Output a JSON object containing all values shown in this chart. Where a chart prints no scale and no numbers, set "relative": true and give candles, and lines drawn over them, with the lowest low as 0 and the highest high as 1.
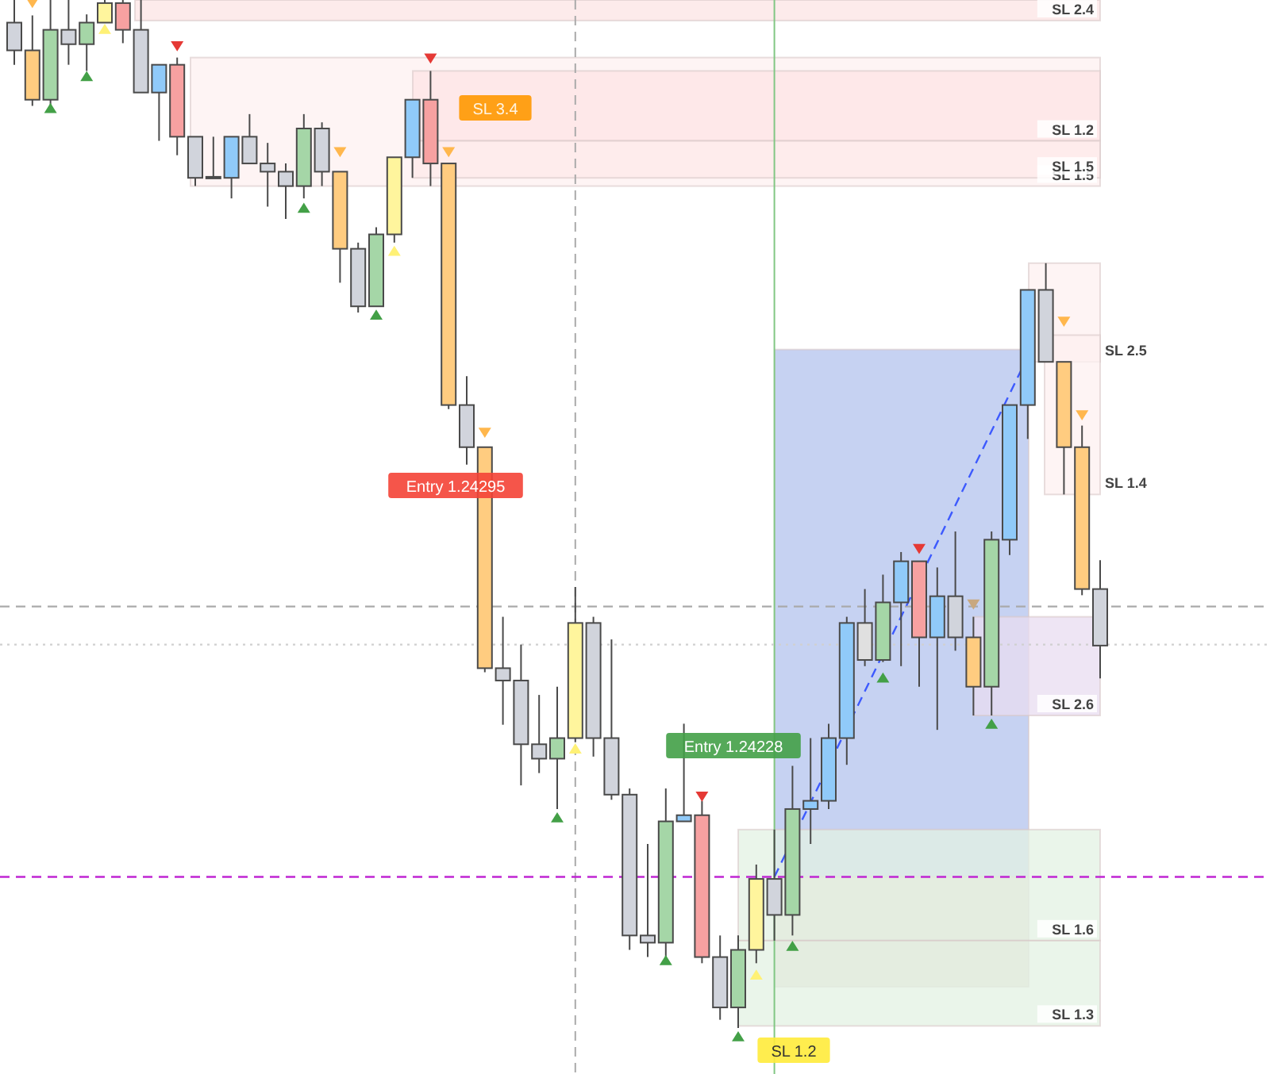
{
  "chart_data": {
    "type": "candlestick",
    "relative": true,
    "categories": [
      null,
      null,
      null,
      null,
      null,
      null,
      null,
      null,
      null,
      null,
      null,
      null,
      null,
      null,
      null,
      null,
      null,
      null,
      null,
      null,
      null,
      null,
      null,
      null,
      null,
      null,
      null,
      null,
      null,
      null,
      null,
      null,
      null,
      null,
      null,
      null,
      null,
      null,
      null,
      null,
      null,
      null,
      null,
      null,
      null,
      null,
      null,
      null,
      null,
      null,
      null,
      null,
      null,
      null,
      null,
      null,
      null,
      null,
      null,
      null,
      null
    ],
    "ohlc": [
      [
        0.978,
        1,
        0.937,
        0.951
      ],
      [
        0.951,
        0.985,
        0.897,
        0.903
      ],
      [
        0.903,
        1,
        0.897,
        0.971
      ],
      [
        0.971,
        1,
        0.937,
        0.957
      ],
      [
        0.957,
        0.986,
        0.931,
        0.978
      ],
      [
        0.978,
        1,
        0.978,
        0.997
      ],
      [
        0.997,
        1,
        0.958,
        0.971
      ],
      [
        0.971,
        1,
        0.91,
        0.91
      ],
      [
        0.91,
        0.937,
        0.863,
        0.937
      ],
      [
        0.937,
        0.944,
        0.849,
        0.867
      ],
      [
        0.867,
        0.867,
        0.819,
        0.827
      ],
      [
        0.828,
        0.867,
        0.827,
        0.827
      ],
      [
        0.827,
        0.867,
        0.807,
        0.867
      ],
      [
        0.867,
        0.889,
        0.841,
        0.841
      ],
      [
        0.841,
        0.861,
        0.799,
        0.833
      ],
      [
        0.833,
        0.841,
        0.787,
        0.819
      ],
      [
        0.819,
        0.889,
        0.807,
        0.875
      ],
      [
        0.875,
        0.881,
        0.819,
        0.833
      ],
      [
        0.833,
        0.833,
        0.725,
        0.758
      ],
      [
        0.758,
        0.764,
        0.696,
        0.702
      ],
      [
        0.702,
        0.779,
        0.702,
        0.772
      ],
      [
        0.772,
        0.847,
        0.764,
        0.847
      ],
      [
        0.847,
        0.903,
        0.827,
        0.903
      ],
      [
        0.903,
        0.931,
        0.819,
        0.841
      ],
      [
        0.841,
        0.841,
        0.602,
        0.606
      ],
      [
        0.606,
        0.634,
        0.548,
        0.565
      ],
      [
        0.565,
        0.565,
        0.346,
        0.35
      ],
      [
        0.35,
        0.4,
        0.295,
        0.338
      ],
      [
        0.338,
        0.373,
        0.236,
        0.276
      ],
      [
        0.276,
        0.324,
        0.248,
        0.262
      ],
      [
        0.262,
        0.332,
        0.213,
        0.282
      ],
      [
        0.282,
        0.429,
        0.278,
        0.394
      ],
      [
        0.394,
        0.4,
        0.264,
        0.282
      ],
      [
        0.282,
        0.378,
        0.222,
        0.227
      ],
      [
        0.227,
        0.233,
        0.076,
        0.09
      ],
      [
        0.09,
        0.179,
        0.069,
        0.083
      ],
      [
        0.083,
        0.233,
        0.069,
        0.201
      ],
      [
        0.201,
        0.296,
        0.201,
        0.207
      ],
      [
        0.207,
        0.221,
        0.063,
        0.069
      ],
      [
        0.069,
        0.09,
        0.008,
        0.02
      ],
      [
        0.02,
        0.09,
        0,
        0.076
      ],
      [
        0.076,
        0.159,
        0.063,
        0.145
      ],
      [
        0.145,
        0.193,
        0.085,
        0.11
      ],
      [
        0.11,
        0.255,
        0.09,
        0.213
      ],
      [
        0.213,
        0.282,
        0.179,
        0.221
      ],
      [
        0.221,
        0.296,
        0.213,
        0.282
      ],
      [
        0.282,
        0.4,
        0.256,
        0.394
      ],
      [
        0.394,
        0.427,
        0.352,
        0.358
      ],
      [
        0.358,
        0.441,
        0.356,
        0.414
      ],
      [
        0.414,
        0.463,
        0.352,
        0.454
      ],
      [
        0.454,
        0.454,
        0.332,
        0.38
      ],
      [
        0.38,
        0.448,
        0.29,
        0.42
      ],
      [
        0.42,
        0.483,
        0.367,
        0.38
      ],
      [
        0.38,
        0.4,
        0.304,
        0.332
      ],
      [
        0.332,
        0.483,
        0.304,
        0.475
      ],
      [
        0.475,
        0.606,
        0.46,
        0.606
      ],
      [
        0.606,
        0.718,
        0.573,
        0.718
      ],
      [
        0.718,
        0.744,
        0.648,
        0.648
      ],
      [
        0.648,
        0.648,
        0.519,
        0.565
      ],
      [
        0.565,
        0.586,
        0.421,
        0.427
      ],
      [
        0.427,
        0.455,
        0.34,
        0.372
      ]
    ],
    "colors": [
      "#d1d4dc",
      "#ffcc80",
      "#a5d6a7",
      "#d1d4dc",
      "#a5d6a7",
      "#fff59d",
      "#f7a1a1",
      "#d1d4dc",
      "#90caf9",
      "#f7a1a1",
      "#d1d4dc",
      "#d1d4dc",
      "#90caf9",
      "#d1d4dc",
      "#d1d4dc",
      "#d1d4dc",
      "#a5d6a7",
      "#d1d4dc",
      "#ffcc80",
      "#d1d4dc",
      "#a5d6a7",
      "#fff59d",
      "#90caf9",
      "#f7a1a1",
      "#ffcc80",
      "#d1d4dc",
      "#ffcc80",
      "#d1d4dc",
      "#d1d4dc",
      "#d1d4dc",
      "#a5d6a7",
      "#fff59d",
      "#d1d4dc",
      "#d1d4dc",
      "#d1d4dc",
      "#d1d4dc",
      "#a5d6a7",
      "#90caf9",
      "#f7a1a1",
      "#d1d4dc",
      "#a5d6a7",
      "#fff59d",
      "#d1d4dc",
      "#a5d6a7",
      "#90caf9",
      "#90caf9",
      "#90caf9",
      "#e0e0e0",
      "#a5d6a7",
      "#90caf9",
      "#f7a1a1",
      "#90caf9",
      "#d1d4dc",
      "#ffcc80",
      "#a5d6a7",
      "#90caf9",
      "#90caf9",
      "#d1d4dc",
      "#ffcc80",
      "#ffcc80",
      "#d1d4dc"
    ],
    "series": [
      {
        "type": "scatter",
        "marker": "triangle",
        "values": [
          null,
          0.997,
          0.895,
          null,
          0.926,
          0.972,
          null,
          null,
          null,
          0.955,
          null,
          null,
          null,
          null,
          null,
          null,
          0.798,
          null,
          0.852,
          null,
          0.694,
          0.756,
          null,
          0.943,
          0.852,
          null,
          0.579,
          null,
          null,
          null,
          0.205,
          0.272,
          null,
          null,
          null,
          null,
          0.066,
          null,
          0.225,
          null,
          -0.008,
          0.052,
          null,
          0.08,
          null,
          null,
          null,
          null,
          0.341,
          null,
          0.466,
          null,
          null,
          0.412,
          0.296,
          null,
          null,
          null,
          0.687,
          0.596,
          null
        ],
        "colors": [
          null,
          "#ffb74d",
          "#43a047",
          null,
          "#43a047",
          "#fff176",
          null,
          null,
          null,
          "#e53935",
          null,
          null,
          null,
          null,
          null,
          null,
          "#43a047",
          null,
          "#ffb74d",
          null,
          "#43a047",
          "#fff176",
          null,
          "#e53935",
          "#ffb74d",
          null,
          "#ffb74d",
          null,
          null,
          null,
          "#43a047",
          "#fff176",
          null,
          null,
          null,
          null,
          "#43a047",
          null,
          "#e53935",
          null,
          "#43a047",
          "#fff176",
          null,
          "#43a047",
          null,
          null,
          null,
          null,
          "#43a047",
          null,
          "#e53935",
          null,
          null,
          "#c8a880",
          "#43a047",
          null,
          null,
          null,
          "#ffb74d",
          "#ffb74d",
          null
        ]
      },
      {
        "type": "line",
        "values": [
          null,
          null,
          null,
          null,
          null,
          null,
          null,
          null,
          null,
          null,
          null,
          null,
          null,
          null,
          null,
          null,
          null,
          null,
          null,
          null,
          null,
          null,
          null,
          null,
          null,
          null,
          null,
          null,
          null,
          null,
          null,
          null,
          null,
          null,
          null,
          null,
          null,
          null,
          null,
          null,
          null,
          null,
          0.147,
          null,
          null,
          null,
          null,
          null,
          null,
          null,
          null,
          null,
          null,
          null,
          null,
          null,
          0.653,
          null,
          null,
          null,
          null
        ],
        "color": "#3d5afe",
        "line_style": "dashed"
      }
    ],
    "bands": [
      {
        "axis": "y",
        "from": 0.98,
        "to": 1,
        "label": "SL 2.4",
        "color": "#fce4e4"
      },
      {
        "axis": "y",
        "from": 0.819,
        "to": 0.944,
        "label": "SL 1.5",
        "color": "#fdf0f0"
      },
      {
        "axis": "y",
        "from": 0.863,
        "to": 0.931,
        "label": "SL 1.2",
        "color": "#fde4e6"
      },
      {
        "axis": "y",
        "from": 0.827,
        "to": 0.863,
        "label": "SL 1.5",
        "color": "#fde9ea"
      },
      {
        "axis": "y",
        "from": 0.648,
        "to": 0.744,
        "label": "SL 2.5",
        "color": "#fdf0f0"
      },
      {
        "axis": "y",
        "from": 0.519,
        "to": 0.674,
        "label": "SL 1.4",
        "color": "#fdf0f0"
      },
      {
        "axis": "y",
        "from": 0.147,
        "to": 0.66,
        "color": "#b3c3ee"
      },
      {
        "axis": "y",
        "from": 0.04,
        "to": 0.147,
        "color": "#ddd3cb"
      },
      {
        "axis": "y",
        "from": 0.304,
        "to": 0.4,
        "label": "SL 2.6",
        "color": "#e8dcf0"
      },
      {
        "axis": "y",
        "from": 0.085,
        "to": 0.193,
        "label": "SL 1.6",
        "color": "#e3f1e3"
      },
      {
        "axis": "y",
        "from": 0.002,
        "to": 0.085,
        "label": "SL 1.3",
        "color": "#e3f1e3"
      }
    ],
    "ref_lines": [
      {
        "axis": "y",
        "value": 0.41,
        "color": "#aaaaaa",
        "line_style": "dashed"
      },
      {
        "axis": "y",
        "value": 0.373,
        "color": "#d0d0d0",
        "line_style": "dotted"
      },
      {
        "axis": "y",
        "value": 0.147,
        "color": "#c026d3",
        "line_style": "dashed"
      }
    ],
    "annotations": [
      "SL 3.4",
      "Entry 1.24295",
      "Entry 1.24228",
      "SL 1.2"
    ]
  }
}
